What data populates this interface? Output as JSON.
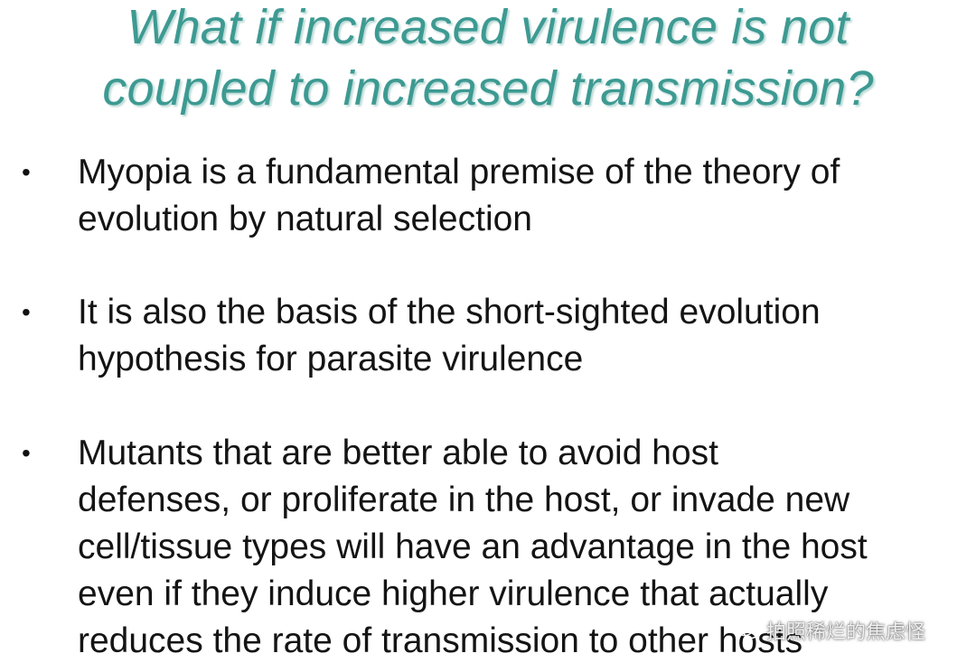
{
  "slide": {
    "title_lines": [
      "What if increased virulence is not",
      "coupled to increased transmission?"
    ],
    "bullet_symbol": "•",
    "bullets": [
      {
        "lines": [
          "Myopia is a fundamental premise of the theory of",
          "evolution by natural selection"
        ]
      },
      {
        "lines": [
          "It is also the basis of the short-sighted evolution",
          "hypothesis for parasite virulence"
        ]
      },
      {
        "lines": [
          "Mutants that are better able to avoid host",
          "defenses, or proliferate in the host, or invade new",
          "cell/tissue types will have an advantage in the host",
          "even if they induce higher virulence that actually",
          "reduces the rate of transmission to other hosts"
        ]
      }
    ]
  },
  "watermark": {
    "icon": "wechat-icon",
    "text": "拍照稀烂的焦虑怪"
  },
  "colors": {
    "title": "#3d9a92",
    "title_shadow": "#b9d9d5",
    "body_text": "#141414",
    "background": "#ffffff"
  }
}
